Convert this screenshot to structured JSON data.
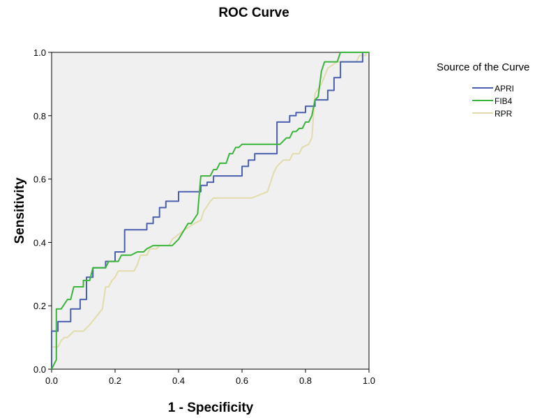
{
  "chart_data": {
    "type": "line",
    "title": "ROC Curve",
    "xlabel": "1 - Specificity",
    "ylabel": "Sensitivity",
    "xlim": [
      0,
      1
    ],
    "ylim": [
      0,
      1
    ],
    "xticks": [
      "0.0",
      "0.2",
      "0.4",
      "0.6",
      "0.8",
      "1.0"
    ],
    "yticks": [
      "0.0",
      "0.2",
      "0.4",
      "0.6",
      "0.8",
      "1.0"
    ],
    "grid": false,
    "plot_background": "#f0f0f0",
    "legend": {
      "title": "Source of the Curve",
      "placement": "right"
    },
    "series": [
      {
        "name": "APRI",
        "color": "#4a5fae",
        "points": [
          [
            0,
            0
          ],
          [
            0,
            0.12
          ],
          [
            0.02,
            0.12
          ],
          [
            0.02,
            0.15
          ],
          [
            0.06,
            0.15
          ],
          [
            0.06,
            0.19
          ],
          [
            0.09,
            0.19
          ],
          [
            0.09,
            0.22
          ],
          [
            0.11,
            0.22
          ],
          [
            0.11,
            0.29
          ],
          [
            0.13,
            0.29
          ],
          [
            0.13,
            0.32
          ],
          [
            0.17,
            0.32
          ],
          [
            0.17,
            0.34
          ],
          [
            0.2,
            0.34
          ],
          [
            0.2,
            0.37
          ],
          [
            0.23,
            0.37
          ],
          [
            0.23,
            0.44
          ],
          [
            0.3,
            0.44
          ],
          [
            0.3,
            0.46
          ],
          [
            0.32,
            0.46
          ],
          [
            0.32,
            0.48
          ],
          [
            0.34,
            0.48
          ],
          [
            0.34,
            0.51
          ],
          [
            0.36,
            0.51
          ],
          [
            0.36,
            0.53
          ],
          [
            0.4,
            0.53
          ],
          [
            0.4,
            0.56
          ],
          [
            0.47,
            0.56
          ],
          [
            0.47,
            0.58
          ],
          [
            0.49,
            0.58
          ],
          [
            0.49,
            0.59
          ],
          [
            0.51,
            0.59
          ],
          [
            0.51,
            0.61
          ],
          [
            0.6,
            0.61
          ],
          [
            0.6,
            0.64
          ],
          [
            0.62,
            0.64
          ],
          [
            0.62,
            0.66
          ],
          [
            0.64,
            0.66
          ],
          [
            0.64,
            0.68
          ],
          [
            0.71,
            0.68
          ],
          [
            0.71,
            0.78
          ],
          [
            0.75,
            0.78
          ],
          [
            0.75,
            0.8
          ],
          [
            0.77,
            0.8
          ],
          [
            0.77,
            0.81
          ],
          [
            0.8,
            0.81
          ],
          [
            0.8,
            0.83
          ],
          [
            0.83,
            0.83
          ],
          [
            0.83,
            0.85
          ],
          [
            0.87,
            0.85
          ],
          [
            0.87,
            0.88
          ],
          [
            0.89,
            0.88
          ],
          [
            0.89,
            0.92
          ],
          [
            0.91,
            0.92
          ],
          [
            0.91,
            0.97
          ],
          [
            0.98,
            0.97
          ],
          [
            0.98,
            1
          ]
        ]
      },
      {
        "name": "FIB4",
        "color": "#3ab53a",
        "points": [
          [
            0,
            0
          ],
          [
            0.015,
            0.03
          ],
          [
            0.015,
            0.19
          ],
          [
            0.03,
            0.19
          ],
          [
            0.05,
            0.22
          ],
          [
            0.06,
            0.22
          ],
          [
            0.07,
            0.26
          ],
          [
            0.1,
            0.26
          ],
          [
            0.1,
            0.28
          ],
          [
            0.12,
            0.28
          ],
          [
            0.13,
            0.32
          ],
          [
            0.17,
            0.32
          ],
          [
            0.18,
            0.34
          ],
          [
            0.21,
            0.34
          ],
          [
            0.22,
            0.36
          ],
          [
            0.25,
            0.36
          ],
          [
            0.27,
            0.37
          ],
          [
            0.29,
            0.37
          ],
          [
            0.3,
            0.38
          ],
          [
            0.32,
            0.39
          ],
          [
            0.38,
            0.39
          ],
          [
            0.4,
            0.41
          ],
          [
            0.43,
            0.46
          ],
          [
            0.44,
            0.46
          ],
          [
            0.46,
            0.49
          ],
          [
            0.47,
            0.61
          ],
          [
            0.5,
            0.61
          ],
          [
            0.51,
            0.63
          ],
          [
            0.52,
            0.63
          ],
          [
            0.53,
            0.65
          ],
          [
            0.55,
            0.65
          ],
          [
            0.56,
            0.68
          ],
          [
            0.57,
            0.68
          ],
          [
            0.58,
            0.7
          ],
          [
            0.59,
            0.7
          ],
          [
            0.6,
            0.71
          ],
          [
            0.72,
            0.71
          ],
          [
            0.74,
            0.73
          ],
          [
            0.75,
            0.73
          ],
          [
            0.76,
            0.75
          ],
          [
            0.77,
            0.75
          ],
          [
            0.78,
            0.76
          ],
          [
            0.79,
            0.76
          ],
          [
            0.8,
            0.78
          ],
          [
            0.81,
            0.78
          ],
          [
            0.82,
            0.8
          ],
          [
            0.83,
            0.85
          ],
          [
            0.84,
            0.86
          ],
          [
            0.85,
            0.94
          ],
          [
            0.86,
            0.97
          ],
          [
            0.9,
            0.97
          ],
          [
            0.91,
            1
          ],
          [
            1,
            1
          ]
        ]
      },
      {
        "name": "RPR",
        "color": "#e2dbab",
        "points": [
          [
            0,
            0
          ],
          [
            0,
            0.07
          ],
          [
            0.02,
            0.07
          ],
          [
            0.03,
            0.09
          ],
          [
            0.04,
            0.1
          ],
          [
            0.05,
            0.1
          ],
          [
            0.06,
            0.11
          ],
          [
            0.07,
            0.12
          ],
          [
            0.1,
            0.12
          ],
          [
            0.11,
            0.13
          ],
          [
            0.12,
            0.14
          ],
          [
            0.16,
            0.19
          ],
          [
            0.17,
            0.26
          ],
          [
            0.18,
            0.26
          ],
          [
            0.19,
            0.28
          ],
          [
            0.2,
            0.29
          ],
          [
            0.21,
            0.31
          ],
          [
            0.26,
            0.31
          ],
          [
            0.27,
            0.33
          ],
          [
            0.28,
            0.36
          ],
          [
            0.3,
            0.36
          ],
          [
            0.31,
            0.38
          ],
          [
            0.33,
            0.38
          ],
          [
            0.34,
            0.39
          ],
          [
            0.37,
            0.39
          ],
          [
            0.38,
            0.41
          ],
          [
            0.42,
            0.44
          ],
          [
            0.45,
            0.46
          ],
          [
            0.47,
            0.47
          ],
          [
            0.48,
            0.5
          ],
          [
            0.5,
            0.53
          ],
          [
            0.51,
            0.54
          ],
          [
            0.63,
            0.54
          ],
          [
            0.68,
            0.56
          ],
          [
            0.7,
            0.62
          ],
          [
            0.71,
            0.64
          ],
          [
            0.73,
            0.66
          ],
          [
            0.75,
            0.66
          ],
          [
            0.76,
            0.68
          ],
          [
            0.78,
            0.68
          ],
          [
            0.79,
            0.7
          ],
          [
            0.81,
            0.71
          ],
          [
            0.82,
            0.73
          ],
          [
            0.83,
            0.87
          ],
          [
            0.85,
            0.9
          ],
          [
            0.87,
            0.95
          ],
          [
            0.9,
            0.97
          ],
          [
            0.96,
            0.97
          ],
          [
            0.97,
            0.99
          ],
          [
            0.99,
            0.99
          ],
          [
            0.99,
            1
          ],
          [
            1,
            1
          ]
        ]
      }
    ]
  }
}
